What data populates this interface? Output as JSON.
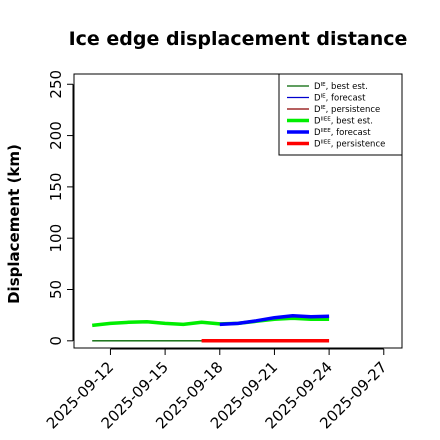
{
  "chart_data": {
    "type": "line",
    "title": "Ice edge displacement distance",
    "ylabel": "Displacement (km)",
    "xlabel": "",
    "xlim": [
      "2025-09-10",
      "2025-09-28"
    ],
    "ylim": [
      -7,
      260
    ],
    "yticks": [
      0,
      50,
      100,
      150,
      200,
      250
    ],
    "xticks": [
      "2025-09-12",
      "2025-09-15",
      "2025-09-18",
      "2025-09-21",
      "2025-09-24",
      "2025-09-27"
    ],
    "highlight_tick": "2025-09-18",
    "highlight_color": "#228B22",
    "grid": false,
    "legend_position": "top-right",
    "series": [
      {
        "name": "D^IE, best est.",
        "color": "#006400",
        "width": 1.3,
        "x": [
          "2025-09-11",
          "2025-09-18"
        ],
        "y": [
          0,
          0
        ]
      },
      {
        "name": "D^IE, forecast",
        "color": "#0000cd",
        "width": 1.3,
        "x": [],
        "y": []
      },
      {
        "name": "D^IE, persistence",
        "color": "#8b0000",
        "width": 1.3,
        "x": [],
        "y": []
      },
      {
        "name": "D^IIEE, best est.",
        "color": "#00ee00",
        "width": 3.5,
        "x": [
          "2025-09-11",
          "2025-09-12",
          "2025-09-13",
          "2025-09-14",
          "2025-09-15",
          "2025-09-16",
          "2025-09-17",
          "2025-09-18",
          "2025-09-19",
          "2025-09-20",
          "2025-09-21",
          "2025-09-22",
          "2025-09-23",
          "2025-09-24"
        ],
        "y": [
          15,
          17,
          18,
          18.5,
          17,
          16,
          18,
          16.5,
          17,
          19,
          21,
          22,
          21,
          21
        ]
      },
      {
        "name": "D^IIEE, forecast",
        "color": "#0000ff",
        "width": 3.5,
        "x": [
          "2025-09-18",
          "2025-09-19",
          "2025-09-20",
          "2025-09-21",
          "2025-09-22",
          "2025-09-23",
          "2025-09-24"
        ],
        "y": [
          16,
          17,
          19.5,
          22.5,
          24.5,
          23.5,
          24
        ]
      },
      {
        "name": "D^IIEE, persistence",
        "color": "#ff0000",
        "width": 3.5,
        "x": [
          "2025-09-17",
          "2025-09-18",
          "2025-09-19",
          "2025-09-20",
          "2025-09-21",
          "2025-09-22",
          "2025-09-23",
          "2025-09-24"
        ],
        "y": [
          0,
          0,
          0,
          0,
          0,
          0,
          0,
          0
        ]
      }
    ],
    "legend": [
      {
        "base": "D",
        "sup": "IE",
        "suffix": ", best est."
      },
      {
        "base": "D",
        "sup": "IE",
        "suffix": ", forecast"
      },
      {
        "base": "D",
        "sup": "IE",
        "suffix": ", persistence"
      },
      {
        "base": "D",
        "sup": "IIEE",
        "suffix": ", best est."
      },
      {
        "base": "D",
        "sup": "IIEE",
        "suffix": ", forecast"
      },
      {
        "base": "D",
        "sup": "IIEE",
        "suffix": ", persistence"
      }
    ]
  }
}
